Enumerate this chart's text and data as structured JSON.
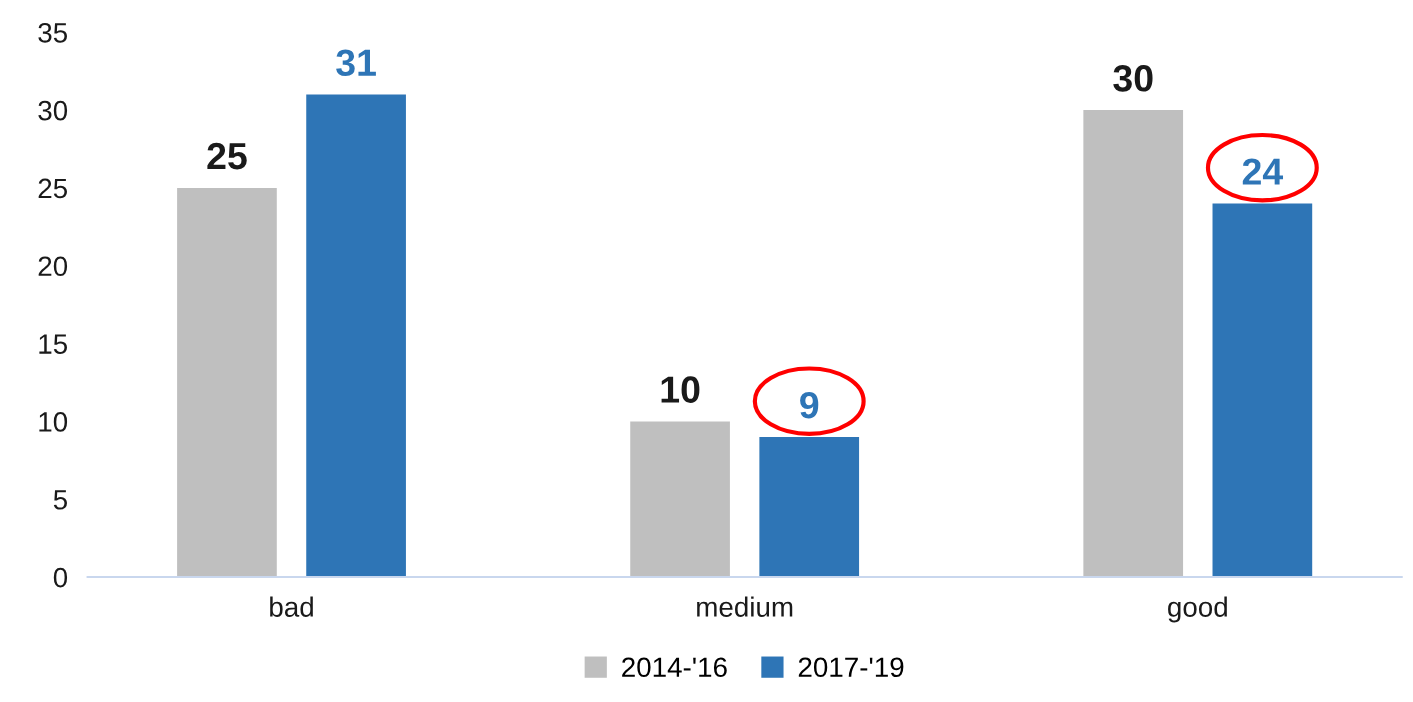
{
  "chart_data": {
    "type": "bar",
    "categories": [
      "bad",
      "medium",
      "good"
    ],
    "series": [
      {
        "name": "2014-'16",
        "color": "#bfbfbf",
        "values": [
          25,
          10,
          30
        ]
      },
      {
        "name": "2017-'19",
        "color": "#2e75b6",
        "values": [
          31,
          9,
          24
        ]
      }
    ],
    "ylim": [
      0,
      35
    ],
    "yticks": [
      0,
      5,
      10,
      15,
      20,
      25,
      30,
      35
    ],
    "data_labels": true,
    "grid": false,
    "legend": "bottom"
  }
}
